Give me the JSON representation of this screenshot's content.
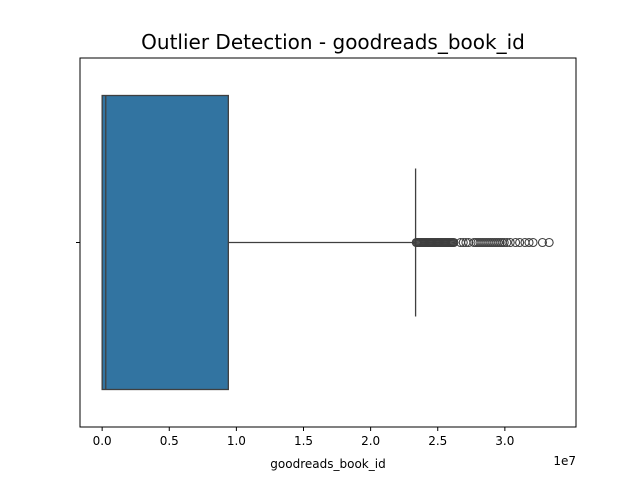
{
  "chart_data": {
    "type": "box",
    "orientation": "horizontal",
    "title": "Outlier Detection - goodreads_book_id",
    "xlabel": "goodreads_book_id",
    "x_offset_text": "1e7",
    "xlim": [
      -1650000,
      35300000
    ],
    "x_ticks": [
      0,
      5000000,
      10000000,
      15000000,
      20000000,
      25000000,
      30000000
    ],
    "x_tick_labels": [
      "0.0",
      "0.5",
      "1.0",
      "1.5",
      "2.0",
      "2.5",
      "3.0"
    ],
    "color": "#3274a1",
    "grid": false,
    "box": {
      "min": 0,
      "q1": 0,
      "median": 270000,
      "q3": 9400000,
      "whisker_low": 0,
      "whisker_high": 23350000
    },
    "outliers": [
      23400000,
      23480000,
      23560000,
      23640000,
      23720000,
      23800000,
      23880000,
      23960000,
      24040000,
      24120000,
      24200000,
      24280000,
      24360000,
      24440000,
      24520000,
      24600000,
      24680000,
      24760000,
      24840000,
      24920000,
      25000000,
      25080000,
      25160000,
      25240000,
      25320000,
      25400000,
      25480000,
      25560000,
      25640000,
      25720000,
      25800000,
      25880000,
      25960000,
      26040000,
      26120000,
      26200000,
      26700000,
      26900000,
      27100000,
      27300000,
      27700000,
      27850000,
      28000000,
      28150000,
      28300000,
      28450000,
      28600000,
      28750000,
      28900000,
      29050000,
      29200000,
      29350000,
      29500000,
      29650000,
      29800000,
      29950000,
      30150000,
      30400000,
      30800000,
      31100000,
      31500000,
      31800000,
      32100000,
      32800000,
      33300000
    ]
  }
}
